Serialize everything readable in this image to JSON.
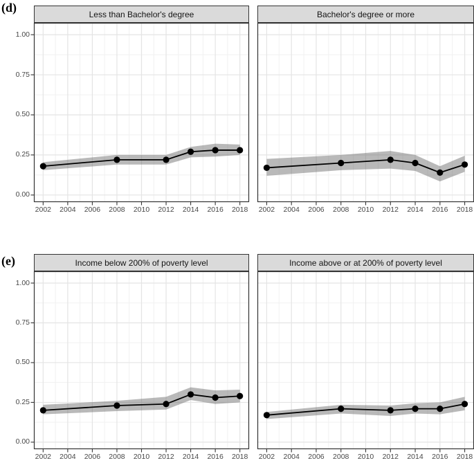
{
  "figure": {
    "background": "#ffffff",
    "rows": [
      {
        "label": "(d)"
      },
      {
        "label": "(e)"
      }
    ],
    "axis": {
      "x_ticks": [
        {
          "value": 2002,
          "label": "2002"
        },
        {
          "value": 2004,
          "label": "2004"
        },
        {
          "value": 2006,
          "label": "2006"
        },
        {
          "value": 2008,
          "label": "2008"
        },
        {
          "value": 2010,
          "label": "2010"
        },
        {
          "value": 2012,
          "label": "2012"
        },
        {
          "value": 2014,
          "label": "2014"
        },
        {
          "value": 2016,
          "label": "2016"
        },
        {
          "value": 2018,
          "label": "2018"
        }
      ],
      "x_minor_ticks": [
        2003,
        2005,
        2007,
        2009,
        2011,
        2013,
        2015,
        2017
      ],
      "y_ticks": [
        {
          "value": 1.0,
          "label": "1.00"
        },
        {
          "value": 0.75,
          "label": "0.75"
        },
        {
          "value": 0.5,
          "label": "0.50"
        },
        {
          "value": 0.25,
          "label": "0.25"
        },
        {
          "value": 0.0,
          "label": "0.00"
        }
      ],
      "y_minor_ticks": [
        0.125,
        0.375,
        0.625,
        0.875
      ],
      "x_range": [
        2001.25,
        2018.75
      ],
      "y_range": [
        -0.044,
        1.074
      ],
      "grid": "on",
      "legend": "none"
    },
    "colors": {
      "strip_bg": "#dadada",
      "strip_border": "#333333",
      "panel_bg": "#ffffff",
      "panel_border": "#333333",
      "grid_major": "#e4e4e4",
      "grid_minor": "#f1f1f1",
      "band": "rgba(99,99,99,0.45)",
      "line": "#000000",
      "point": "#000000",
      "tick_mark": "#333333",
      "tick_label": "#474747"
    }
  },
  "chart_data": [
    {
      "type": "line",
      "row_label": "(d)",
      "facet_title": "Less than Bachelor's degree",
      "x": [
        2002,
        2008,
        2012,
        2014,
        2016,
        2018
      ],
      "y": [
        0.18,
        0.22,
        0.22,
        0.27,
        0.28,
        0.28
      ],
      "ci_lower": [
        0.155,
        0.19,
        0.19,
        0.235,
        0.24,
        0.25
      ],
      "ci_upper": [
        0.205,
        0.25,
        0.25,
        0.3,
        0.32,
        0.315
      ],
      "title": "Less than Bachelor's degree",
      "xlabel": "",
      "ylabel": "",
      "ylim": [
        0,
        1.05
      ]
    },
    {
      "type": "line",
      "row_label": "(d)",
      "facet_title": "Bachelor's degree or more",
      "x": [
        2002,
        2008,
        2012,
        2014,
        2016,
        2018
      ],
      "y": [
        0.17,
        0.2,
        0.22,
        0.2,
        0.14,
        0.19
      ],
      "ci_lower": [
        0.12,
        0.155,
        0.165,
        0.15,
        0.085,
        0.145
      ],
      "ci_upper": [
        0.225,
        0.25,
        0.275,
        0.25,
        0.18,
        0.245
      ],
      "title": "Bachelor's degree or more",
      "xlabel": "",
      "ylabel": "",
      "ylim": [
        0,
        1.05
      ]
    },
    {
      "type": "line",
      "row_label": "(e)",
      "facet_title": "Income below 200% of poverty level",
      "x": [
        2002,
        2008,
        2012,
        2014,
        2016,
        2018
      ],
      "y": [
        0.2,
        0.23,
        0.24,
        0.3,
        0.28,
        0.29
      ],
      "ci_lower": [
        0.175,
        0.195,
        0.205,
        0.265,
        0.24,
        0.25
      ],
      "ci_upper": [
        0.235,
        0.26,
        0.285,
        0.345,
        0.325,
        0.33
      ],
      "title": "Income below 200% of poverty level",
      "xlabel": "",
      "ylabel": "",
      "ylim": [
        0,
        1.05
      ]
    },
    {
      "type": "line",
      "row_label": "(e)",
      "facet_title": "Income above or at 200% of poverty level",
      "x": [
        2002,
        2008,
        2012,
        2014,
        2016,
        2018
      ],
      "y": [
        0.17,
        0.21,
        0.2,
        0.21,
        0.21,
        0.24
      ],
      "ci_lower": [
        0.145,
        0.18,
        0.165,
        0.18,
        0.175,
        0.2
      ],
      "ci_upper": [
        0.19,
        0.235,
        0.23,
        0.245,
        0.25,
        0.285
      ],
      "title": "Income above or at 200% of poverty level",
      "xlabel": "",
      "ylabel": "",
      "ylim": [
        0,
        1.05
      ]
    }
  ]
}
